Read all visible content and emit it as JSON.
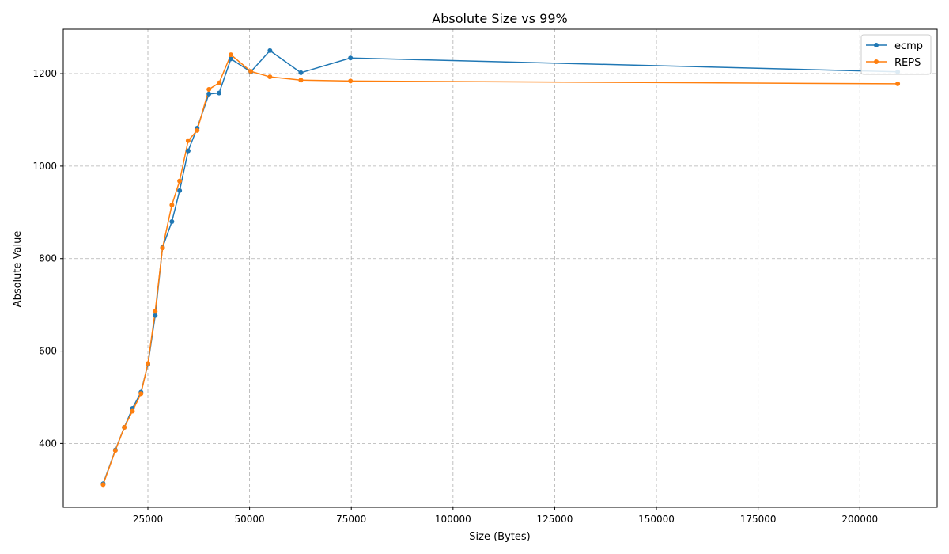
{
  "chart_data": {
    "type": "line",
    "title": "Absolute Size vs 99%",
    "xlabel": "Size (Bytes)",
    "ylabel": "Absolute Value",
    "xlim": [
      4200,
      219000
    ],
    "ylim": [
      262,
      1296
    ],
    "xticks": [
      25000,
      50000,
      75000,
      100000,
      125000,
      150000,
      175000,
      200000
    ],
    "yticks": [
      400,
      600,
      800,
      1000,
      1200
    ],
    "grid": true,
    "legend_position": "top-right",
    "series": [
      {
        "name": "ecmp",
        "color": "#1f77b4",
        "x": [
          14000,
          17000,
          19200,
          21200,
          23300,
          25000,
          26800,
          28600,
          30900,
          32800,
          34900,
          37100,
          40000,
          42500,
          45400,
          50300,
          55000,
          62600,
          74800,
          209300
        ],
        "y": [
          313,
          386,
          435,
          476,
          511,
          571,
          677,
          824,
          880,
          947,
          1033,
          1082,
          1156,
          1158,
          1232,
          1204,
          1250,
          1202,
          1234,
          1204
        ]
      },
      {
        "name": "REPS",
        "color": "#ff7f0e",
        "x": [
          14000,
          17000,
          19200,
          21200,
          23300,
          25000,
          26800,
          28600,
          30900,
          32800,
          34900,
          37100,
          40000,
          42500,
          45400,
          50300,
          55000,
          62600,
          74800,
          209300
        ],
        "y": [
          311,
          385,
          435,
          470,
          508,
          573,
          686,
          823,
          916,
          968,
          1055,
          1077,
          1166,
          1180,
          1241,
          1205,
          1193,
          1186,
          1184,
          1178
        ]
      }
    ]
  }
}
